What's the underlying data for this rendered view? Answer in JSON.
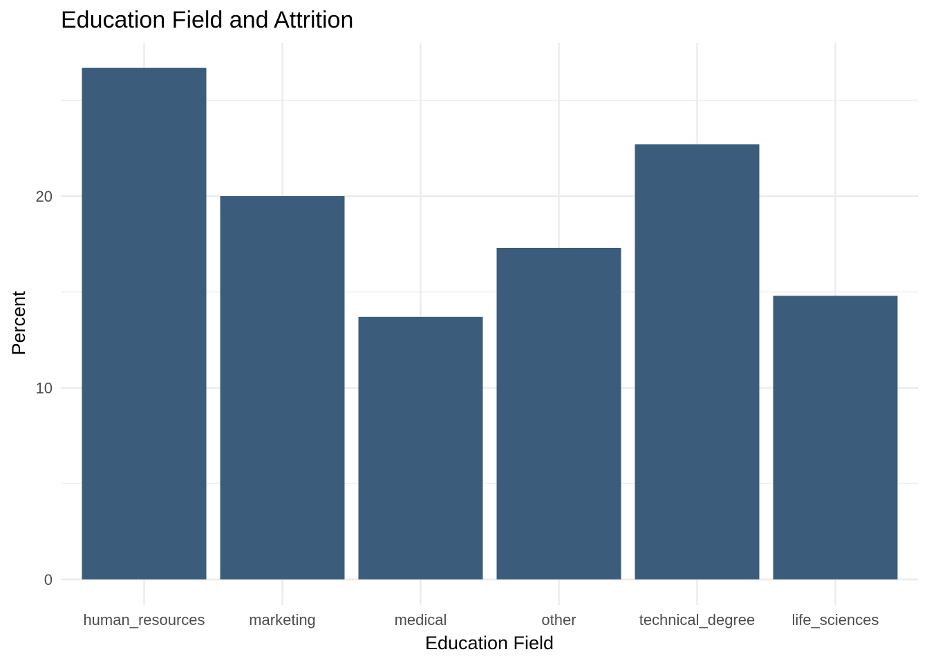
{
  "chart_data": {
    "type": "bar",
    "title": "Education Field and Attrition",
    "xlabel": "Education Field",
    "ylabel": "Percent",
    "categories": [
      "human_resources",
      "marketing",
      "medical",
      "other",
      "technical_degree",
      "life_sciences"
    ],
    "values": [
      26.7,
      20.0,
      13.7,
      17.3,
      22.7,
      14.8
    ],
    "ylim": [
      0,
      28
    ],
    "yticks": [
      0,
      10,
      20
    ],
    "grid": true,
    "bar_color": "#3b5c7a",
    "grid_color": "#ebebeb",
    "legend": "none"
  }
}
